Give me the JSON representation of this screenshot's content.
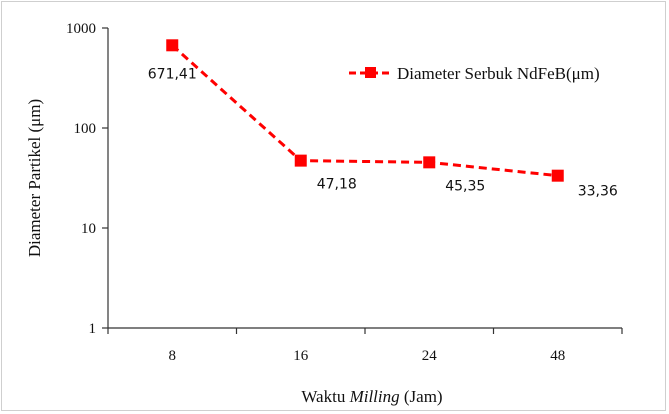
{
  "chart_data": {
    "type": "line",
    "categories": [
      "8",
      "16",
      "24",
      "48"
    ],
    "series": [
      {
        "name": "Diameter Serbuk NdFeB(μm)",
        "values": [
          671.41,
          47.18,
          45.35,
          33.36
        ],
        "labels": [
          "671,41",
          "47,18",
          "45,35",
          "33,36"
        ],
        "color": "#ff0000",
        "line_style": "dashed",
        "marker": "square"
      }
    ],
    "y_scale": "log",
    "ylim": [
      1,
      1000
    ],
    "y_ticks": [
      "1",
      "10",
      "100",
      "1000"
    ],
    "xlabel_prefix": "Waktu ",
    "xlabel_italic": "Milling",
    "xlabel_suffix": " (Jam)",
    "ylabel": "Diameter Partikel (μm)",
    "legend_position": "top-right",
    "grid": false
  }
}
